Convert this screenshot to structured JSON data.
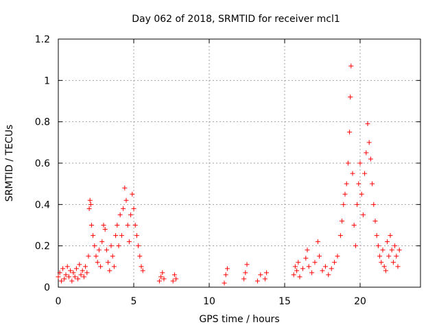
{
  "chart_data": {
    "type": "scatter",
    "title": "Day 062 of 2018, SRMTID for receiver mcl1",
    "xlabel": "GPS time / hours",
    "ylabel": "SRMTID / TECUs",
    "xlim": [
      0,
      24
    ],
    "ylim": [
      0,
      1.2
    ],
    "xticks": [
      0,
      5,
      10,
      15,
      20
    ],
    "yticks": [
      0,
      0.2,
      0.4,
      0.6,
      0.8,
      1,
      1.2
    ],
    "ytick_labels": [
      "0",
      "0.2",
      "0.4",
      "0.6",
      "0.8",
      "1",
      "1.2"
    ],
    "grid": true,
    "marker": "+",
    "color": "#ff0000",
    "series": [
      {
        "name": "SRMTID",
        "points": [
          [
            0.0,
            0.05
          ],
          [
            0.1,
            0.07
          ],
          [
            0.2,
            0.03
          ],
          [
            0.3,
            0.09
          ],
          [
            0.4,
            0.04
          ],
          [
            0.5,
            0.06
          ],
          [
            0.6,
            0.1
          ],
          [
            0.7,
            0.05
          ],
          [
            0.8,
            0.08
          ],
          [
            0.9,
            0.03
          ],
          [
            1.0,
            0.07
          ],
          [
            1.1,
            0.05
          ],
          [
            1.2,
            0.09
          ],
          [
            1.3,
            0.04
          ],
          [
            1.4,
            0.11
          ],
          [
            1.5,
            0.06
          ],
          [
            1.6,
            0.08
          ],
          [
            1.7,
            0.05
          ],
          [
            1.8,
            0.1
          ],
          [
            1.9,
            0.07
          ],
          [
            2.0,
            0.15
          ],
          [
            2.05,
            0.38
          ],
          [
            2.1,
            0.42
          ],
          [
            2.15,
            0.4
          ],
          [
            2.2,
            0.3
          ],
          [
            2.3,
            0.25
          ],
          [
            2.4,
            0.2
          ],
          [
            2.5,
            0.15
          ],
          [
            2.6,
            0.12
          ],
          [
            2.7,
            0.18
          ],
          [
            2.8,
            0.1
          ],
          [
            2.9,
            0.22
          ],
          [
            3.0,
            0.3
          ],
          [
            3.1,
            0.28
          ],
          [
            3.2,
            0.18
          ],
          [
            3.3,
            0.12
          ],
          [
            3.4,
            0.08
          ],
          [
            3.5,
            0.2
          ],
          [
            3.6,
            0.15
          ],
          [
            3.7,
            0.1
          ],
          [
            3.8,
            0.25
          ],
          [
            3.9,
            0.3
          ],
          [
            4.0,
            0.2
          ],
          [
            4.1,
            0.35
          ],
          [
            4.2,
            0.25
          ],
          [
            4.3,
            0.38
          ],
          [
            4.4,
            0.48
          ],
          [
            4.5,
            0.42
          ],
          [
            4.6,
            0.3
          ],
          [
            4.7,
            0.22
          ],
          [
            4.8,
            0.35
          ],
          [
            4.9,
            0.45
          ],
          [
            5.0,
            0.38
          ],
          [
            5.1,
            0.3
          ],
          [
            5.2,
            0.25
          ],
          [
            5.3,
            0.2
          ],
          [
            5.4,
            0.15
          ],
          [
            5.5,
            0.1
          ],
          [
            5.6,
            0.08
          ],
          [
            6.7,
            0.03
          ],
          [
            6.8,
            0.05
          ],
          [
            6.9,
            0.07
          ],
          [
            7.0,
            0.04
          ],
          [
            7.6,
            0.03
          ],
          [
            7.7,
            0.06
          ],
          [
            7.8,
            0.04
          ],
          [
            11.0,
            0.02
          ],
          [
            11.1,
            0.06
          ],
          [
            11.2,
            0.09
          ],
          [
            12.3,
            0.04
          ],
          [
            12.4,
            0.07
          ],
          [
            12.5,
            0.11
          ],
          [
            13.2,
            0.03
          ],
          [
            13.4,
            0.06
          ],
          [
            13.7,
            0.04
          ],
          [
            13.8,
            0.07
          ],
          [
            15.6,
            0.06
          ],
          [
            15.7,
            0.1
          ],
          [
            15.8,
            0.08
          ],
          [
            15.9,
            0.12
          ],
          [
            16.0,
            0.05
          ],
          [
            16.2,
            0.09
          ],
          [
            16.4,
            0.14
          ],
          [
            16.5,
            0.18
          ],
          [
            16.6,
            0.1
          ],
          [
            16.8,
            0.07
          ],
          [
            17.0,
            0.12
          ],
          [
            17.2,
            0.22
          ],
          [
            17.3,
            0.15
          ],
          [
            17.5,
            0.08
          ],
          [
            17.7,
            0.1
          ],
          [
            17.9,
            0.06
          ],
          [
            18.1,
            0.09
          ],
          [
            18.3,
            0.12
          ],
          [
            18.5,
            0.15
          ],
          [
            18.7,
            0.25
          ],
          [
            18.8,
            0.32
          ],
          [
            18.9,
            0.4
          ],
          [
            19.0,
            0.45
          ],
          [
            19.1,
            0.5
          ],
          [
            19.2,
            0.6
          ],
          [
            19.3,
            0.75
          ],
          [
            19.35,
            0.92
          ],
          [
            19.4,
            1.07
          ],
          [
            19.5,
            0.55
          ],
          [
            19.6,
            0.3
          ],
          [
            19.7,
            0.2
          ],
          [
            19.8,
            0.4
          ],
          [
            19.9,
            0.5
          ],
          [
            20.0,
            0.6
          ],
          [
            20.1,
            0.45
          ],
          [
            20.2,
            0.35
          ],
          [
            20.3,
            0.55
          ],
          [
            20.4,
            0.65
          ],
          [
            20.5,
            0.79
          ],
          [
            20.6,
            0.7
          ],
          [
            20.7,
            0.62
          ],
          [
            20.8,
            0.5
          ],
          [
            20.9,
            0.4
          ],
          [
            21.0,
            0.32
          ],
          [
            21.1,
            0.25
          ],
          [
            21.2,
            0.2
          ],
          [
            21.3,
            0.15
          ],
          [
            21.4,
            0.12
          ],
          [
            21.5,
            0.18
          ],
          [
            21.6,
            0.1
          ],
          [
            21.7,
            0.08
          ],
          [
            21.8,
            0.22
          ],
          [
            21.9,
            0.15
          ],
          [
            22.0,
            0.25
          ],
          [
            22.1,
            0.18
          ],
          [
            22.2,
            0.12
          ],
          [
            22.3,
            0.2
          ],
          [
            22.4,
            0.15
          ],
          [
            22.5,
            0.1
          ],
          [
            22.6,
            0.18
          ]
        ]
      }
    ]
  }
}
